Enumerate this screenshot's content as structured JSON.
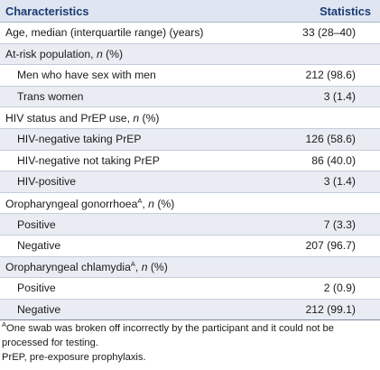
{
  "table": {
    "headers": [
      "Characteristics",
      "Statistics"
    ],
    "rows": [
      {
        "label": "Age, median (interquartile range) (years)",
        "value": "33 (28–40)"
      },
      {
        "label": "At-risk population, ",
        "italic": "n",
        "suffix": " (%)",
        "value": ""
      },
      {
        "label": "Men who have sex with men",
        "value": "212 (98.6)"
      },
      {
        "label": "Trans women",
        "value": "3 (1.4)"
      },
      {
        "label": "HIV status and PrEP use, ",
        "italic": "n",
        "suffix": " (%)",
        "value": ""
      },
      {
        "label": "HIV-negative taking PrEP",
        "value": "126 (58.6)"
      },
      {
        "label": "HIV-negative not taking PrEP",
        "value": "86 (40.0)"
      },
      {
        "label": "HIV-positive",
        "value": "3 (1.4)"
      },
      {
        "label": "Oropharyngeal gonorrhoea",
        "sup": "A",
        "mid": ", ",
        "italic": "n",
        "suffix": " (%)",
        "value": ""
      },
      {
        "label": "Positive",
        "value": "7 (3.3)"
      },
      {
        "label": "Negative",
        "value": "207 (96.7)"
      },
      {
        "label": "Oropharyngeal chlamydia",
        "sup": "A",
        "mid": ", ",
        "italic": "n",
        "suffix": " (%)",
        "value": ""
      },
      {
        "label": "Positive",
        "value": "2 (0.9)"
      },
      {
        "label": "Negative",
        "value": "212 (99.1)"
      }
    ]
  },
  "footnotes": {
    "note_a_marker": "A",
    "note_a_text": "One swab was broken off incorrectly by the participant and it could not be processed for testing.",
    "abbrev": "PrEP, pre-exposure prophylaxis."
  }
}
